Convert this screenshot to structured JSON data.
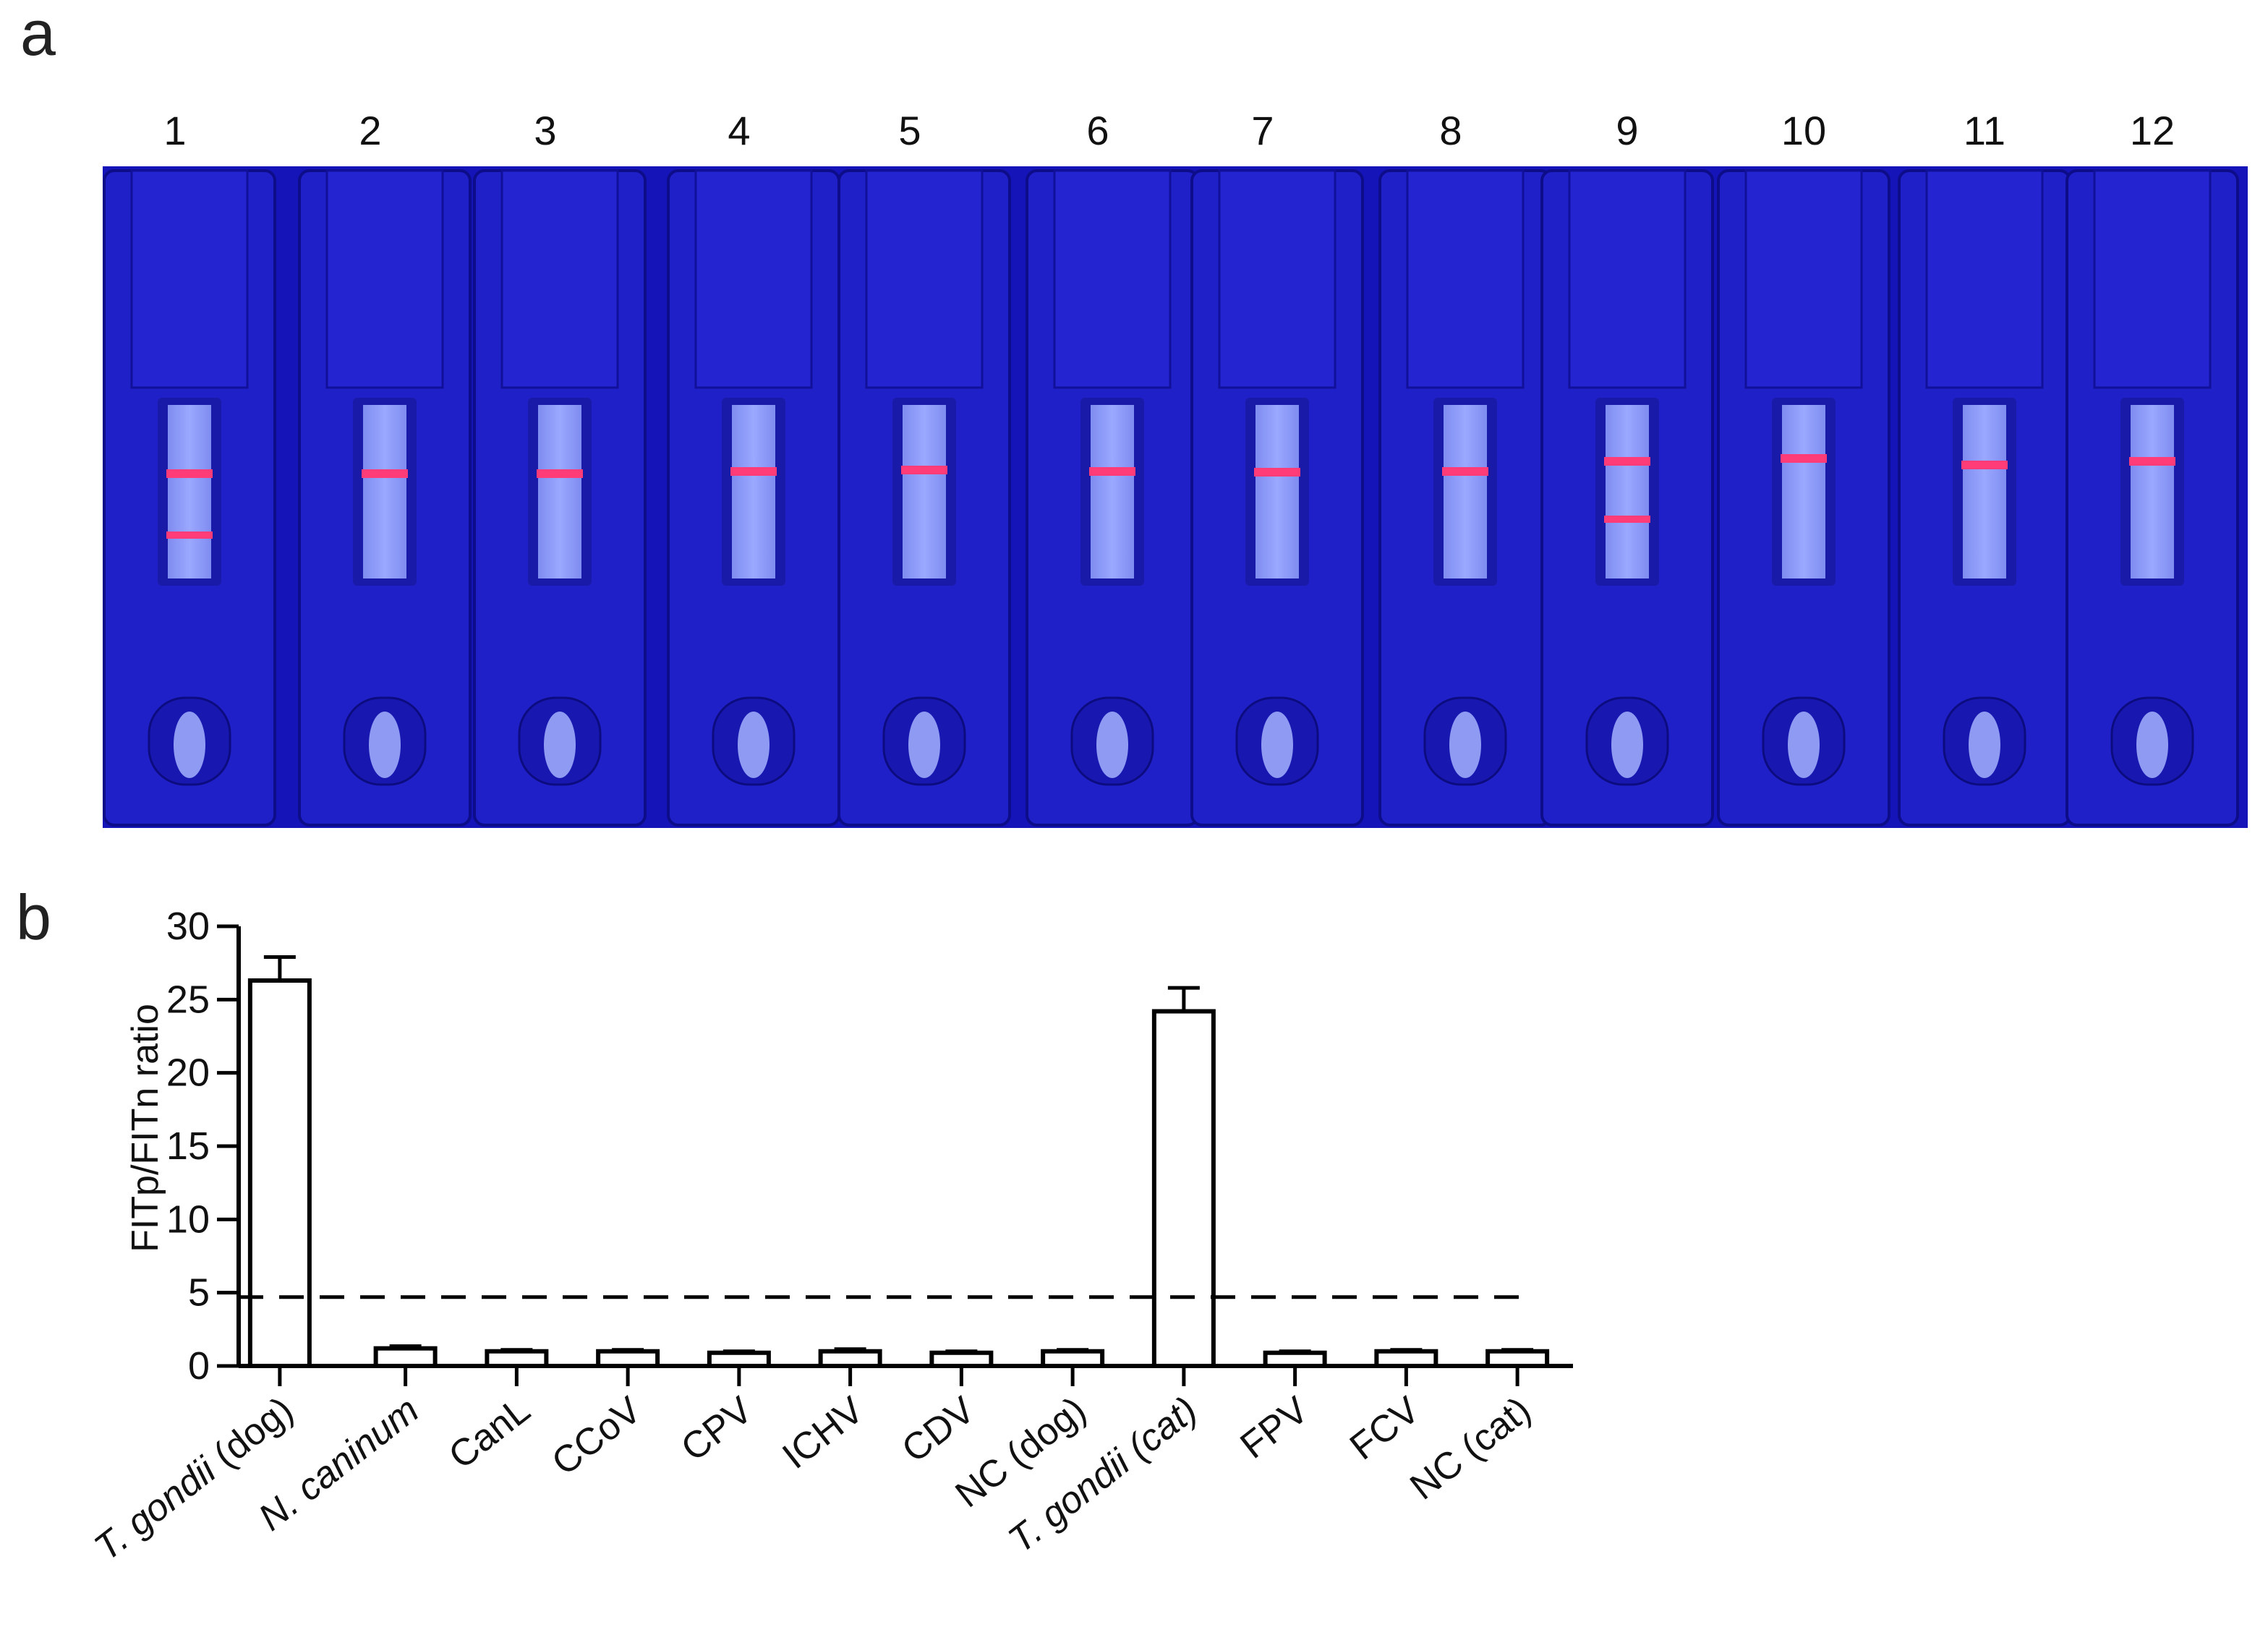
{
  "panels": {
    "a": "a",
    "b": "b"
  },
  "strip_panel": {
    "lane_numbers": [
      "1",
      "2",
      "3",
      "4",
      "5",
      "6",
      "7",
      "8",
      "9",
      "10",
      "11",
      "12"
    ],
    "background_color": "#1a1ad0",
    "band_color": "#ff3c78"
  },
  "chart_data": {
    "type": "bar",
    "ylabel": "FITp/FITn ratio",
    "xlabel": "",
    "ylim": [
      0,
      30
    ],
    "yticks": [
      "0",
      "5",
      "10",
      "15",
      "20",
      "25",
      "30"
    ],
    "categories": [
      {
        "label": "T. gondii (dog)",
        "italic": "T. gondii",
        "rest": " (dog)"
      },
      {
        "label": "N. caninum",
        "italic": "N. caninum",
        "rest": ""
      },
      {
        "label": "CanL",
        "italic": "",
        "rest": "CanL"
      },
      {
        "label": "CCoV",
        "italic": "",
        "rest": "CCoV"
      },
      {
        "label": "CPV",
        "italic": "",
        "rest": "CPV"
      },
      {
        "label": "ICHV",
        "italic": "",
        "rest": "ICHV"
      },
      {
        "label": "CDV",
        "italic": "",
        "rest": "CDV"
      },
      {
        "label": "NC (dog)",
        "italic": "",
        "rest": "NC (dog)"
      },
      {
        "label": "T. gondii (cat)",
        "italic": "T. gondii (cat)",
        "rest": ""
      },
      {
        "label": "FPV",
        "italic": "",
        "rest": "FPV"
      },
      {
        "label": "FCV",
        "italic": "",
        "rest": "FCV"
      },
      {
        "label": "NC (cat)",
        "italic": "",
        "rest": "NC (cat)"
      }
    ],
    "values": [
      26.3,
      1.2,
      1.0,
      1.0,
      0.9,
      1.0,
      0.9,
      1.0,
      24.2,
      0.9,
      1.0,
      1.0
    ],
    "errors": [
      1.6,
      0.15,
      0.1,
      0.1,
      0.1,
      0.15,
      0.1,
      0.1,
      1.6,
      0.1,
      0.1,
      0.1
    ],
    "cutoff": 4.7,
    "bar_fill": "#ffffff",
    "bar_stroke": "#000000"
  }
}
